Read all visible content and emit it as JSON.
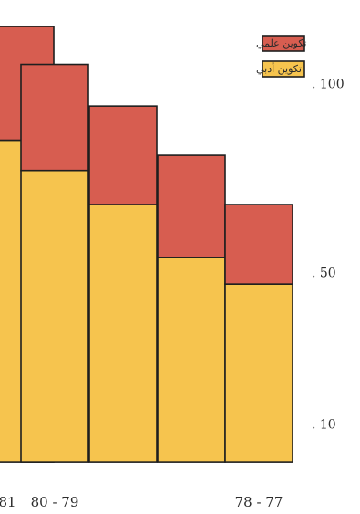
{
  "chart_data": {
    "type": "bar",
    "stacked": true,
    "categories": [
      "81",
      "80 - 79",
      "",
      "",
      "78 - 77"
    ],
    "series": [
      {
        "name": "تكوين أدبي",
        "color": "#f6c44e",
        "values": [
          85,
          77,
          68,
          54,
          47
        ]
      },
      {
        "name": "تكوين علمي",
        "color": "#d75d50",
        "values": [
          30,
          28,
          26,
          27,
          21
        ]
      }
    ],
    "y_ticks": [
      {
        "value": 100,
        "label": ". 100"
      },
      {
        "value": 50,
        "label": ". 50"
      },
      {
        "value": 10,
        "label": ". 10"
      }
    ],
    "y_axis_side": "right",
    "ylim": [
      -6,
      122
    ],
    "legend": {
      "position": "top-right"
    }
  },
  "colors": {
    "bar_outline": "#1f1f1f",
    "background": "#ffffff"
  }
}
